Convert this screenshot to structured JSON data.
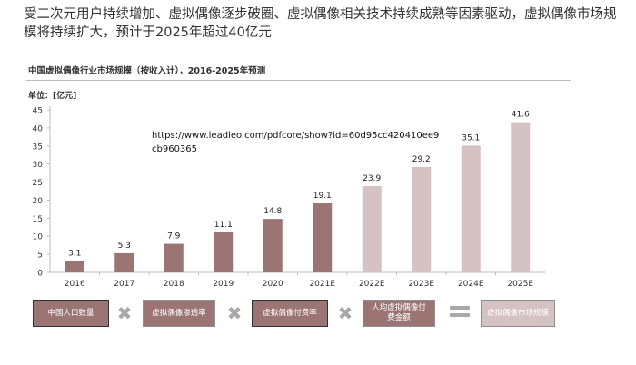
{
  "headline": "受二次元用户持续增加、虚拟偶像逐步破圈、虚拟偶像相关技术持续成熟等因素驱动，虚拟偶像市场规模将持续扩大，预计于2025年超过40亿元",
  "watermark_url": "https://www.leadleo.com/pdfcore/show?id=60d95cc420410ee9cb960365",
  "chart_data": {
    "type": "bar",
    "title": "中国虚拟偶像行业市场规模（按收入计），2016-2025年预测",
    "ylabel": "单位：[亿元]",
    "categories": [
      "2016",
      "2017",
      "2018",
      "2019",
      "2020",
      "2021E",
      "2022E",
      "2023E",
      "2024E",
      "2025E"
    ],
    "values": [
      3.1,
      5.3,
      7.9,
      11.1,
      14.8,
      19.1,
      23.9,
      29.2,
      35.1,
      41.6
    ],
    "data_labels": [
      "3.1",
      "5.3",
      "7.9",
      "11.1",
      "14.8",
      "19.1",
      "23.9",
      "29.2",
      "35.1",
      "41.6"
    ],
    "yticks": [
      0,
      5,
      10,
      15,
      20,
      25,
      30,
      35,
      40,
      45
    ],
    "ylim": [
      0,
      45
    ],
    "grid": false,
    "colors": {
      "actual": "#9b7474",
      "forecast": "#d5c3c3",
      "axis": "#bdbdbd"
    }
  },
  "formula": {
    "box1": "中国人口数量",
    "box2": "虚拟偶像渗透率",
    "box3": "虚拟偶像付费率",
    "box4": "人均虚拟偶像付费金额",
    "result": "虚拟偶像市场规模",
    "op_multiply": "✖",
    "op_equals_icon": "equals-icon"
  }
}
